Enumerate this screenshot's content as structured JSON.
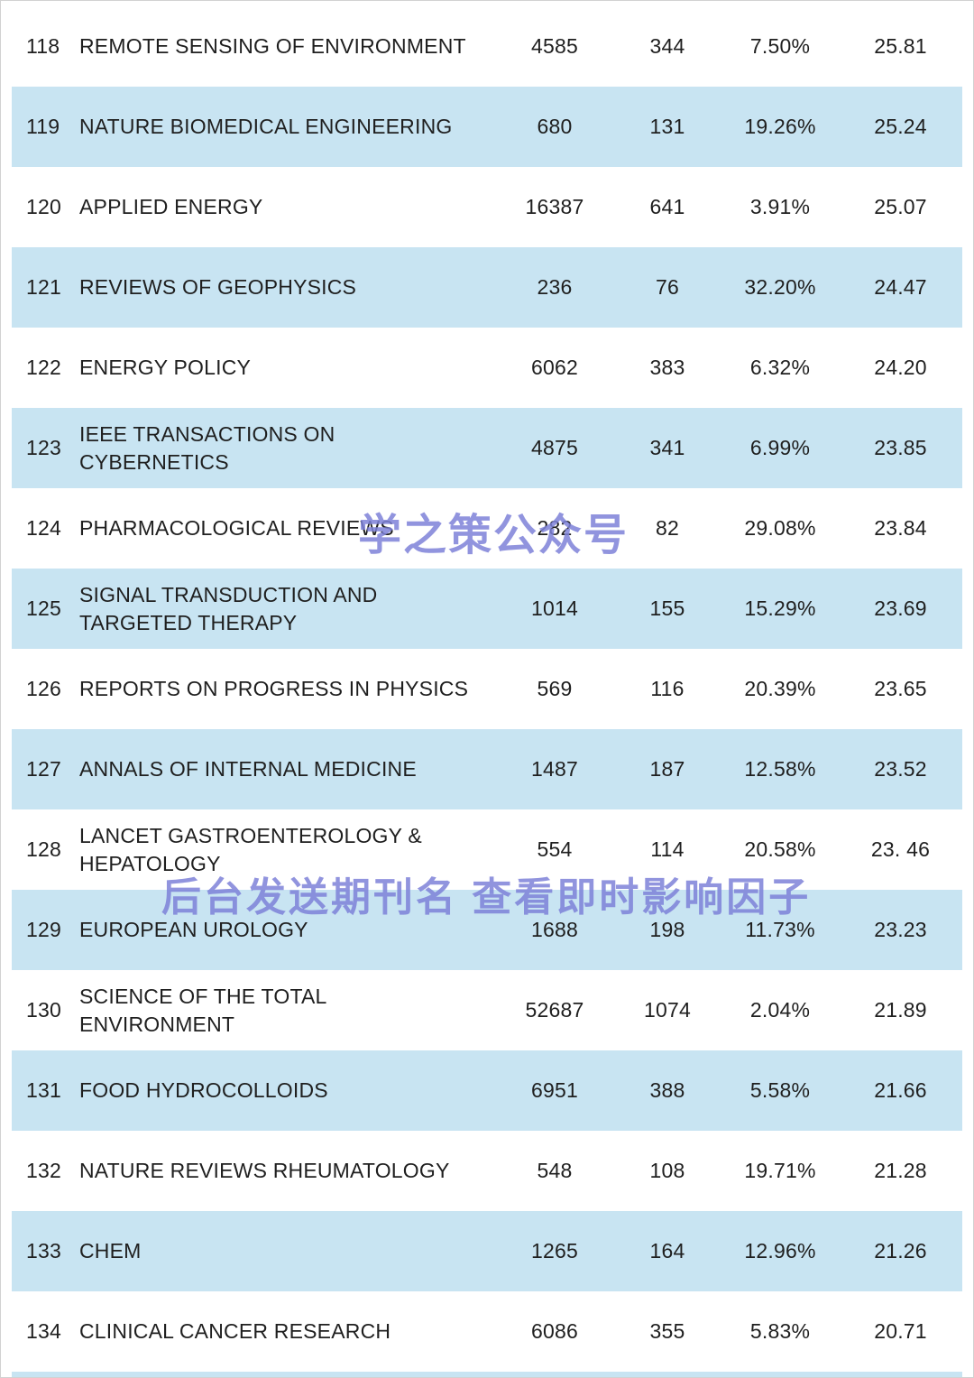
{
  "table": {
    "rows": [
      {
        "rank": "118",
        "name": "REMOTE SENSING OF ENVIRONMENT",
        "cites": "4585",
        "articles": "344",
        "ratio": "7.50%",
        "factor": "25.81"
      },
      {
        "rank": "119",
        "name": "NATURE BIOMEDICAL ENGINEERING",
        "cites": "680",
        "articles": "131",
        "ratio": "19.26%",
        "factor": "25.24"
      },
      {
        "rank": "120",
        "name": "APPLIED ENERGY",
        "cites": "16387",
        "articles": "641",
        "ratio": "3.91%",
        "factor": "25.07"
      },
      {
        "rank": "121",
        "name": "REVIEWS OF GEOPHYSICS",
        "cites": "236",
        "articles": "76",
        "ratio": "32.20%",
        "factor": "24.47"
      },
      {
        "rank": "122",
        "name": "ENERGY POLICY",
        "cites": "6062",
        "articles": "383",
        "ratio": "6.32%",
        "factor": "24.20"
      },
      {
        "rank": "123",
        "name": "IEEE TRANSACTIONS ON CYBERNETICS",
        "cites": "4875",
        "articles": "341",
        "ratio": "6.99%",
        "factor": "23.85"
      },
      {
        "rank": "124",
        "name": "PHARMACOLOGICAL REVIEWS",
        "cites": "282",
        "articles": "82",
        "ratio": "29.08%",
        "factor": "23.84"
      },
      {
        "rank": "125",
        "name": "SIGNAL TRANSDUCTION AND TARGETED THERAPY",
        "cites": "1014",
        "articles": "155",
        "ratio": "15.29%",
        "factor": "23.69"
      },
      {
        "rank": "126",
        "name": "REPORTS ON PROGRESS IN PHYSICS",
        "cites": "569",
        "articles": "116",
        "ratio": "20.39%",
        "factor": "23.65"
      },
      {
        "rank": "127",
        "name": "ANNALS OF INTERNAL MEDICINE",
        "cites": "1487",
        "articles": "187",
        "ratio": "12.58%",
        "factor": "23.52"
      },
      {
        "rank": "128",
        "name": "LANCET GASTROENTEROLOGY & HEPATOLOGY",
        "cites": "554",
        "articles": "114",
        "ratio": "20.58%",
        "factor": "23. 46"
      },
      {
        "rank": "129",
        "name": "EUROPEAN UROLOGY",
        "cites": "1688",
        "articles": "198",
        "ratio": "11.73%",
        "factor": "23.23"
      },
      {
        "rank": "130",
        "name": "SCIENCE OF THE TOTAL ENVIRONMENT",
        "cites": "52687",
        "articles": "1074",
        "ratio": "2.04%",
        "factor": "21.89"
      },
      {
        "rank": "131",
        "name": "FOOD HYDROCOLLOIDS",
        "cites": "6951",
        "articles": "388",
        "ratio": "5.58%",
        "factor": "21.66"
      },
      {
        "rank": "132",
        "name": "NATURE REVIEWS RHEUMATOLOGY",
        "cites": "548",
        "articles": "108",
        "ratio": "19.71%",
        "factor": "21.28"
      },
      {
        "rank": "133",
        "name": "CHEM",
        "cites": "1265",
        "articles": "164",
        "ratio": "12.96%",
        "factor": "21.26"
      },
      {
        "rank": "134",
        "name": "CLINICAL CANCER RESEARCH",
        "cites": "6086",
        "articles": "355",
        "ratio": "5.83%",
        "factor": "20.71"
      }
    ]
  },
  "watermarks": {
    "center_text": "学之策公众号",
    "bottom_text": "后台发送期刊名 查看即时影响因子"
  },
  "colors": {
    "row_white": "#ffffff",
    "row_blue": "#c8e4f2",
    "text": "#1f1f1f",
    "watermark": "#7e82d9"
  }
}
